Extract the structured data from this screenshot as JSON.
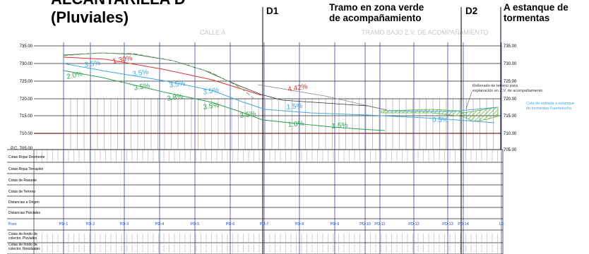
{
  "title": {
    "line1": "ALCANTARILLA D",
    "line2": "(Pluviales)"
  },
  "headers": {
    "d1": "D1",
    "tramo_line1": "Tramo en zona verde",
    "tramo_line2": "de acompañamiento",
    "d2": "D2",
    "estanque_line1": "A estanque de",
    "estanque_line2": "tormentas"
  },
  "sublabels": {
    "calle": "CALLE A",
    "tramo_bajo": "TRAMO BAJO Z.V. DE ACOMPAÑAMIENTO"
  },
  "axis": {
    "left_ticks": [
      "735.00",
      "730.00",
      "725.00",
      "720.00",
      "715.00",
      "710.00",
      "P.C. 705.00"
    ],
    "right_ticks": [
      "735.00",
      "730.00",
      "725.00",
      "720.00",
      "715.00",
      "710.00",
      "705.00"
    ]
  },
  "slopes": [
    {
      "text": "1.30%",
      "color": "#e03030"
    },
    {
      "text": "3.5%",
      "color": "#40a8e0"
    },
    {
      "text": "2.0%",
      "color": "#30a050"
    },
    {
      "text": "3.5%",
      "color": "#40a8e0"
    },
    {
      "text": "3.5%",
      "color": "#30a050"
    },
    {
      "text": "3.8%",
      "color": "#30a050"
    },
    {
      "text": "3.5%",
      "color": "#40a8e0"
    },
    {
      "text": "3.5%",
      "color": "#30a050"
    },
    {
      "text": "3.5%",
      "color": "#30a050"
    },
    {
      "text": "4.42%",
      "color": "#e03030"
    },
    {
      "text": "1.5%",
      "color": "#40a8e0"
    },
    {
      "text": "1.0%",
      "color": "#30a050"
    },
    {
      "text": "1.5%",
      "color": "#30a050"
    },
    {
      "text": "0.5%",
      "color": "#40a8e0"
    },
    {
      "text": "3.5%",
      "color": "#40a8e0"
    }
  ],
  "annotations": {
    "relleno_line1": "Rellenado de terreno para",
    "relleno_line2": "explanación en Z.V. de acompañamiento",
    "cota_line1": "Cota de entrada a estanque",
    "cota_line2": "de tormentas Fuentelucha"
  },
  "row_labels": [
    "Cotas Rojas Desmonte",
    "Cotas Rojas Terraplén",
    "Cotas de Rasante",
    "Cotas de Terreno",
    "Distancias a Origen",
    "Distancias Parciales"
  ],
  "pozo_label": "Pozo",
  "pozos": [
    "PD-1",
    "PD-2",
    "PD-3",
    "PD-4",
    "PD-5",
    "PD-6",
    "PD-7",
    "PD-8",
    "PD-9",
    "PD-10",
    "PD-11",
    "PD-12",
    "PD-13",
    "PD-14",
    "L3"
  ],
  "bottom_labels": {
    "pluviales_line1": "Cotas de fondo de",
    "pluviales_line2": "colector, Pluviales",
    "residuales_line1": "Cotas de fondo de",
    "residuales_line2": "colector, Residuales"
  },
  "colors": {
    "red": "#e03030",
    "green": "#30a050",
    "cyan": "#40a8e0",
    "grade_dash": "#78b878",
    "blue_lines": "#3050b0",
    "pozo_text": "#2040d0",
    "hatch": "#60b040"
  }
}
